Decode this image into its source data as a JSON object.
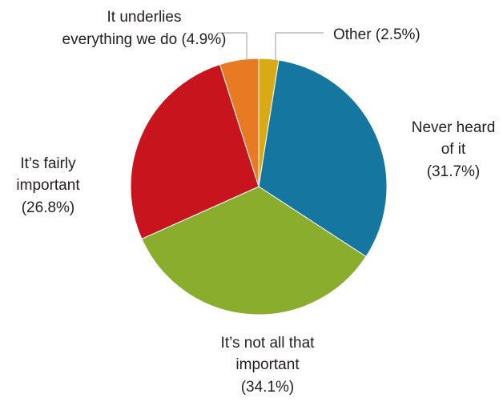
{
  "chart_data": {
    "type": "pie",
    "title": "",
    "start_angle_deg": 0,
    "direction": "clockwise",
    "slices": [
      {
        "label_lines": [
          "Other (2.5%)"
        ],
        "value": 2.5,
        "color": "#d8aa16"
      },
      {
        "label_lines": [
          "Never heard",
          "of it",
          "(31.7%)"
        ],
        "value": 31.7,
        "color": "#1577a0"
      },
      {
        "label_lines": [
          "It’s not all that",
          "important",
          "(34.1%)"
        ],
        "value": 34.1,
        "color": "#8bad2e"
      },
      {
        "label_lines": [
          "It’s fairly",
          "important",
          "(26.8%)"
        ],
        "value": 26.8,
        "color": "#c8151d"
      },
      {
        "label_lines": [
          "It underlies",
          "everything we do  (4.9%)"
        ],
        "value": 4.9,
        "color": "#e77a23"
      }
    ]
  }
}
